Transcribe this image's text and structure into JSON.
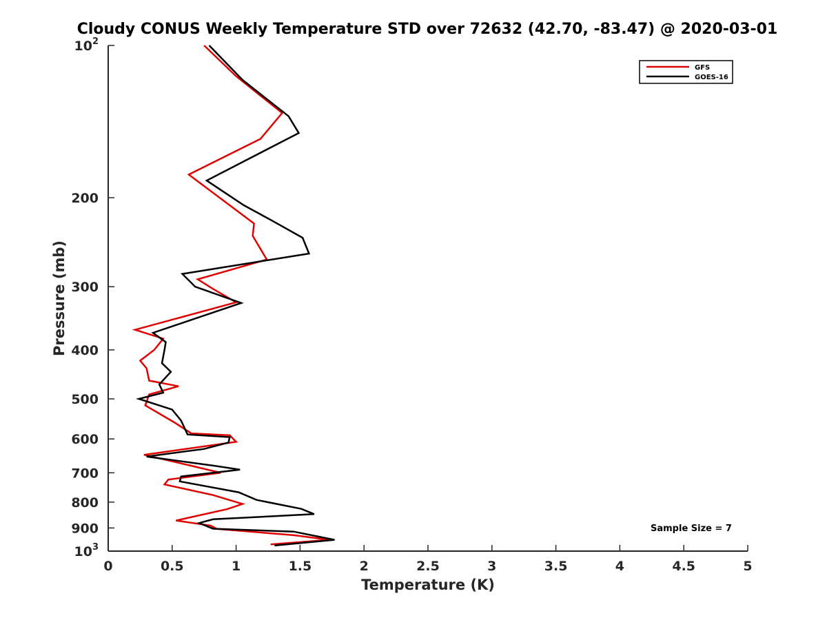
{
  "chart_data": {
    "type": "line",
    "title": "Cloudy CONUS Weekly Temperature STD over 72632 (42.70, -83.47) @ 2020-03-01",
    "xlabel": "Temperature (K)",
    "ylabel": "Pressure (mb)",
    "xlim": [
      0,
      5
    ],
    "ylim": [
      100,
      1000
    ],
    "y_scale": "log",
    "y_reversed": true,
    "x_ticks": [
      0,
      0.5,
      1,
      1.5,
      2,
      2.5,
      3,
      3.5,
      4,
      4.5,
      5
    ],
    "x_tick_labels": [
      "0",
      "0.5",
      "1",
      "1.5",
      "2",
      "2.5",
      "3",
      "3.5",
      "4",
      "4.5",
      "5"
    ],
    "y_ticks": [
      200,
      300,
      400,
      500,
      600,
      700,
      800,
      900
    ],
    "y_tick_labels": [
      "200",
      "300",
      "400",
      "500",
      "600",
      "700",
      "800",
      "900"
    ],
    "y_end_labels": [
      {
        "value": 100,
        "base": "10",
        "exp": "2"
      },
      {
        "value": 1000,
        "base": "10",
        "exp": "3"
      }
    ],
    "legend_position": "top-right",
    "annotation": "Sample Size = 7",
    "series": [
      {
        "name": "GFS",
        "color": "#e00000",
        "points": [
          [
            0.75,
            100
          ],
          [
            1.0,
            115
          ],
          [
            1.36,
            136
          ],
          [
            1.19,
            153
          ],
          [
            0.63,
            180
          ],
          [
            1.14,
            225
          ],
          [
            1.13,
            238
          ],
          [
            1.24,
            265
          ],
          [
            0.7,
            290
          ],
          [
            0.82,
            303
          ],
          [
            1.0,
            322
          ],
          [
            0.21,
            365
          ],
          [
            0.43,
            380
          ],
          [
            0.36,
            400
          ],
          [
            0.25,
            420
          ],
          [
            0.3,
            435
          ],
          [
            0.32,
            460
          ],
          [
            0.55,
            472
          ],
          [
            0.32,
            490
          ],
          [
            0.29,
            515
          ],
          [
            0.52,
            557
          ],
          [
            0.65,
            585
          ],
          [
            0.95,
            590
          ],
          [
            1.0,
            608
          ],
          [
            0.8,
            618
          ],
          [
            0.28,
            645
          ],
          [
            0.65,
            678
          ],
          [
            0.88,
            700
          ],
          [
            0.47,
            722
          ],
          [
            0.44,
            738
          ],
          [
            0.82,
            775
          ],
          [
            1.05,
            807
          ],
          [
            0.93,
            826
          ],
          [
            0.53,
            870
          ],
          [
            0.8,
            890
          ],
          [
            0.85,
            904
          ],
          [
            1.45,
            930
          ],
          [
            1.73,
            950
          ],
          [
            1.27,
            970
          ]
        ]
      },
      {
        "name": "GOES-16",
        "color": "#000000",
        "points": [
          [
            0.79,
            100
          ],
          [
            1.05,
            117
          ],
          [
            1.41,
            138
          ],
          [
            1.49,
            149
          ],
          [
            0.77,
            185
          ],
          [
            1.06,
            207
          ],
          [
            1.28,
            222
          ],
          [
            1.52,
            240
          ],
          [
            1.57,
            258
          ],
          [
            0.58,
            283
          ],
          [
            0.68,
            300
          ],
          [
            1.04,
            323
          ],
          [
            0.35,
            370
          ],
          [
            0.45,
            386
          ],
          [
            0.44,
            400
          ],
          [
            0.42,
            425
          ],
          [
            0.49,
            442
          ],
          [
            0.4,
            468
          ],
          [
            0.43,
            486
          ],
          [
            0.24,
            500
          ],
          [
            0.5,
            525
          ],
          [
            0.57,
            552
          ],
          [
            0.62,
            588
          ],
          [
            0.95,
            595
          ],
          [
            0.94,
            610
          ],
          [
            0.75,
            628
          ],
          [
            0.3,
            650
          ],
          [
            0.83,
            678
          ],
          [
            1.03,
            690
          ],
          [
            0.57,
            712
          ],
          [
            0.56,
            728
          ],
          [
            1.02,
            765
          ],
          [
            1.16,
            792
          ],
          [
            1.51,
            825
          ],
          [
            1.61,
            845
          ],
          [
            0.82,
            865
          ],
          [
            0.71,
            880
          ],
          [
            0.82,
            903
          ],
          [
            1.45,
            915
          ],
          [
            1.77,
            950
          ],
          [
            1.3,
            975
          ]
        ]
      }
    ]
  }
}
